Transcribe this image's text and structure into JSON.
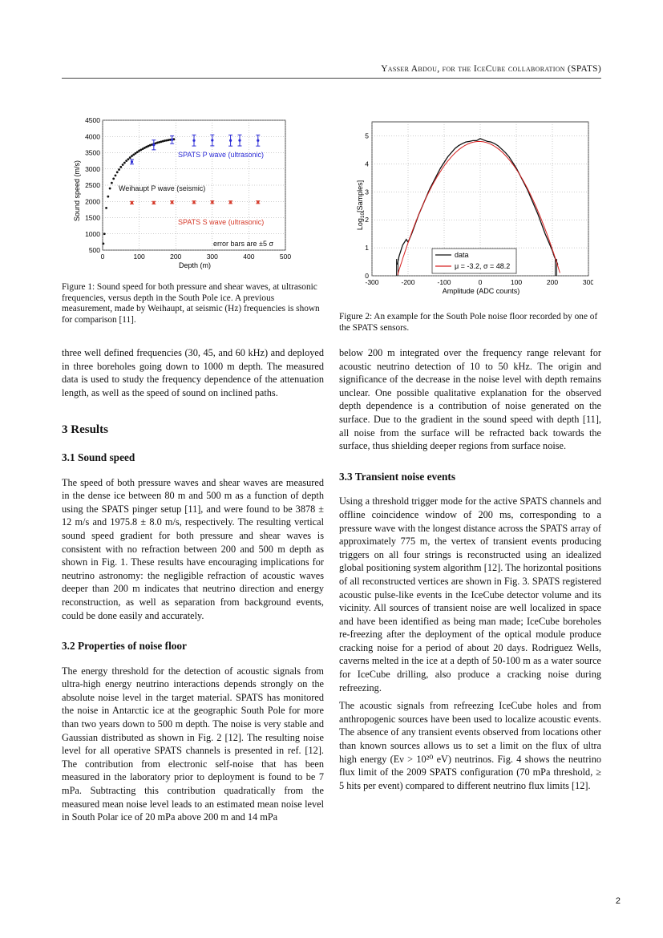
{
  "header": {
    "author": "Yasser Abdou",
    "for_the": ", for the ",
    "collab": "IceCube collaboration",
    "spats": " (SPATS)"
  },
  "fig1": {
    "caption": "Figure 1: Sound speed for both pressure and shear waves, at ultrasonic frequencies, versus depth in the South Pole ice. A previous measurement, made by Weihaupt, at seismic (Hz) frequencies is shown for comparison [11].",
    "xlabel": "Depth (m)",
    "ylabel": "Sound speed (m/s)",
    "label_p": "SPATS P wave (ultrasonic)",
    "label_weihaupt": "Weihaupt P wave (seismic)",
    "label_s": "SPATS S wave (ultrasonic)",
    "label_err": "error bars are ±5 σ",
    "p_color": "#2b2bd6",
    "s_color": "#d63b2b"
  },
  "fig2": {
    "caption": "Figure 2: An example for the South Pole noise floor recorded by one of the SPATS sensors.",
    "xlabel": "Amplitude (ADC counts)",
    "ylabel": "Log10[Samples]",
    "legend_data": "data",
    "legend_fit": "μ = -3.2, σ = 48.2",
    "fit_color": "#d62020"
  },
  "chart_data": [
    {
      "type": "scatter",
      "xlim": [
        0,
        500
      ],
      "ylim": [
        500,
        4500
      ],
      "xticks": [
        0,
        100,
        200,
        300,
        400,
        500
      ],
      "yticks": [
        500,
        1000,
        1500,
        2000,
        2500,
        3000,
        3500,
        4000,
        4500
      ],
      "series": [
        {
          "name": "SPATS P wave (ultrasonic)",
          "x": [
            80,
            140,
            190,
            250,
            300,
            350,
            375,
            425
          ],
          "y": [
            3220,
            3740,
            3900,
            3878,
            3882,
            3876,
            3880,
            3876
          ],
          "err": [
            70,
            150,
            120,
            170,
            170,
            170,
            170,
            170
          ]
        },
        {
          "name": "Weihaupt P wave (seismic)",
          "x": [
            2,
            5,
            10,
            15,
            20,
            25,
            30,
            35,
            40,
            45,
            50,
            55,
            60,
            65,
            70,
            75,
            80,
            85,
            90,
            95,
            100,
            105,
            110,
            115,
            120,
            125,
            130,
            135,
            140,
            145,
            150,
            155,
            160,
            165,
            170,
            175,
            180,
            185,
            190,
            195
          ],
          "y": [
            700,
            1000,
            1800,
            2150,
            2400,
            2570,
            2700,
            2800,
            2900,
            2980,
            3060,
            3130,
            3190,
            3250,
            3300,
            3350,
            3400,
            3440,
            3480,
            3520,
            3560,
            3590,
            3620,
            3650,
            3680,
            3705,
            3730,
            3750,
            3770,
            3790,
            3810,
            3825,
            3840,
            3855,
            3870,
            3880,
            3890,
            3900,
            3910,
            3915
          ]
        },
        {
          "name": "SPATS S wave (ultrasonic)",
          "x": [
            80,
            140,
            190,
            250,
            300,
            350,
            425
          ],
          "y": [
            1960,
            1960,
            1975,
            1975,
            1976,
            1975,
            1976
          ],
          "err": [
            40,
            40,
            40,
            40,
            40,
            40,
            40
          ]
        }
      ]
    },
    {
      "type": "line",
      "xlim": [
        -300,
        300
      ],
      "ylim": [
        0,
        5.5
      ],
      "xticks": [
        -300,
        -200,
        -100,
        0,
        100,
        200,
        300
      ],
      "yticks": [
        0,
        1,
        2,
        3,
        4,
        5
      ],
      "fit": {
        "mu": -3.2,
        "sigma": 48.2,
        "peak": 4.8
      },
      "series": [
        {
          "name": "data",
          "x": [
            -230,
            -225,
            -215,
            -205,
            -200,
            -190,
            -180,
            -170,
            -160,
            -150,
            -140,
            -130,
            -120,
            -110,
            -100,
            -90,
            -80,
            -70,
            -60,
            -50,
            -40,
            -30,
            -20,
            -10,
            0,
            10,
            20,
            30,
            40,
            50,
            60,
            70,
            80,
            90,
            100,
            110,
            120,
            130,
            140,
            150,
            160,
            170,
            180,
            190,
            200,
            205,
            215
          ],
          "y": [
            0.4,
            0.7,
            1.1,
            1.3,
            1.2,
            1.5,
            1.85,
            2.2,
            2.5,
            2.8,
            3.1,
            3.35,
            3.6,
            3.85,
            4.05,
            4.25,
            4.4,
            4.55,
            4.65,
            4.72,
            4.78,
            4.8,
            4.83,
            4.83,
            4.9,
            4.85,
            4.8,
            4.78,
            4.72,
            4.64,
            4.52,
            4.4,
            4.25,
            4.05,
            3.85,
            3.6,
            3.35,
            3.1,
            2.8,
            2.5,
            2.2,
            1.85,
            1.5,
            1.2,
            0.9,
            0.7,
            0.4
          ]
        },
        {
          "name": "μ = -3.2, σ = 48.2"
        }
      ]
    }
  ],
  "left_col": {
    "p_intro": "three well defined frequencies (30, 45, and 60 kHz) and deployed in three boreholes going down to 1000 m depth. The measured data is used to study the frequency dependence of the attenuation length, as well as the speed of sound on inclined paths.",
    "h_results": "3   Results",
    "h_sound": "3.1   Sound speed",
    "p_sound": "The speed of both pressure waves and shear waves are measured in the dense ice between 80 m and 500 m as a function of depth using the SPATS pinger setup [11], and were found to be 3878 ± 12 m/s and 1975.8 ± 8.0 m/s, respectively. The resulting vertical sound speed gradient for both pressure and shear waves is consistent with no refraction between 200 and 500 m depth as shown in Fig. 1. These results have encouraging implications for neutrino astronomy: the negligible refraction of acoustic waves deeper than 200 m indicates that neutrino direction and energy reconstruction, as well as separation from background events, could be done easily and accurately.",
    "h_noise": "3.2   Properties of noise floor",
    "p_noise": "The energy threshold for the detection of acoustic signals from ultra-high energy neutrino interactions depends strongly on the absolute noise level in the target material. SPATS has monitored the noise in Antarctic ice at the geographic South Pole for more than two years down to 500 m depth. The noise is very stable and Gaussian distributed as shown in Fig. 2 [12]. The resulting noise level for all operative SPATS channels is presented in ref. [12]. The contribution from electronic self-noise that has been measured in the laboratory prior to deployment is found to be 7 mPa. Subtracting this contribution quadratically from the measured mean noise level leads to an estimated mean noise level in South Polar ice of 20 mPa above 200 m and 14 mPa"
  },
  "right_col": {
    "p_cont": "below 200 m integrated over the frequency range relevant for acoustic neutrino detection of 10 to 50 kHz. The origin and significance of the decrease in the noise level with depth remains unclear. One possible qualitative explanation for the observed depth dependence is a contribution of noise generated on the surface. Due to the gradient in the sound speed with depth [11], all noise from the surface will be refracted back towards the surface, thus shielding deeper regions from surface noise.",
    "h_transient": "3.3   Transient noise events",
    "p_transient": "Using a threshold trigger mode for the active SPATS channels and offline coincidence window of 200 ms, corresponding to a pressure wave with the longest distance across the SPATS array of approximately 775 m, the vertex of transient events producing triggers on all four strings is reconstructed using an idealized global positioning system algorithm [12]. The horizontal positions of all reconstructed vertices are shown in Fig. 3. SPATS registered acoustic pulse-like events in the IceCube detector volume and its vicinity. All sources of transient noise are well localized in space and have been identified as being man made; IceCube boreholes re-freezing after the deployment of the optical module produce cracking noise for a period of about 20 days. Rodriguez Wells, caverns melted in the ice at a depth of 50-100 m as a water source for IceCube drilling, also produce a cracking noise during refreezing.",
    "p_limit": "The acoustic signals from refreezing IceCube holes and from anthropogenic sources have been used to localize acoustic events. The absence of any transient events observed from locations other than known sources allows us to set a limit on the flux of ultra high energy (Eν > 10²⁰ eV) neutrinos. Fig. 4 shows the neutrino flux limit of the 2009 SPATS configuration (70 mPa threshold, ≥ 5 hits per event) compared to different neutrino flux limits [12]."
  },
  "page_number": "2"
}
